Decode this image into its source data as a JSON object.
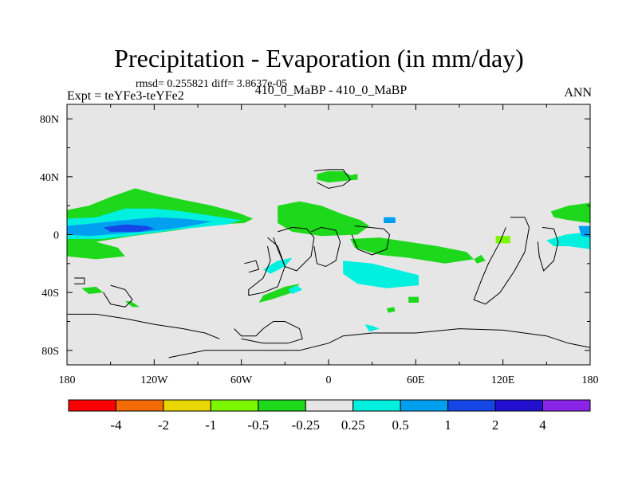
{
  "chart_data": {
    "type": "contour-map",
    "title": "Precipitation - Evaporation (in mm/day)",
    "stats": "rmsd= 0.255821  diff= 3.8637e-05",
    "expt_label": "Expt = teYFe3-teYFe2",
    "case_label": "410_0_MaBP - 410_0_MaBP",
    "season": "ANN",
    "x_range": [
      -180,
      180
    ],
    "y_range": [
      -90,
      90
    ],
    "x_ticks": [
      {
        "value": -180,
        "label": "180"
      },
      {
        "value": -120,
        "label": "120W"
      },
      {
        "value": -60,
        "label": "60W"
      },
      {
        "value": 0,
        "label": "0"
      },
      {
        "value": 60,
        "label": "60E"
      },
      {
        "value": 120,
        "label": "120E"
      },
      {
        "value": 180,
        "label": "180"
      }
    ],
    "y_ticks": [
      {
        "value": 80,
        "label": "80N"
      },
      {
        "value": 40,
        "label": "40N"
      },
      {
        "value": 0,
        "label": "0"
      },
      {
        "value": -40,
        "label": "40S"
      },
      {
        "value": -80,
        "label": "80S"
      }
    ],
    "colorbar": {
      "colors": [
        "#ff0000",
        "#f46a04",
        "#e8d700",
        "#7cf700",
        "#1ed81c",
        "#e6e6e6",
        "#00f0e0",
        "#009ff0",
        "#1546e8",
        "#2210d0",
        "#8a24e8"
      ],
      "levels": [
        "-4",
        "-2",
        "-1",
        "-0.5",
        "-0.25",
        "0.25",
        "0.5",
        "1",
        "2",
        "4"
      ]
    },
    "colors": {
      "background": "#e6e6e6",
      "green": "#1ed81c",
      "cyan": "#00f0e0",
      "lightblue": "#009ff0",
      "blue": "#1546e8",
      "lime": "#7cf700"
    },
    "regions": [
      {
        "level": "green",
        "points": [
          [
            -180,
            17
          ],
          [
            -165,
            20
          ],
          [
            -150,
            26
          ],
          [
            -133,
            32
          ],
          [
            -118,
            28
          ],
          [
            -100,
            24
          ],
          [
            -80,
            20
          ],
          [
            -62,
            15
          ],
          [
            -52,
            11
          ],
          [
            -58,
            8
          ],
          [
            -80,
            7
          ],
          [
            -105,
            3
          ],
          [
            -135,
            -1
          ],
          [
            -160,
            -5
          ],
          [
            -180,
            -5
          ]
        ]
      },
      {
        "level": "cyan",
        "points": [
          [
            -180,
            11
          ],
          [
            -160,
            12
          ],
          [
            -140,
            18
          ],
          [
            -120,
            18
          ],
          [
            -100,
            16
          ],
          [
            -80,
            13
          ],
          [
            -60,
            10
          ],
          [
            -70,
            7
          ],
          [
            -100,
            4
          ],
          [
            -130,
            0
          ],
          [
            -155,
            -3
          ],
          [
            -180,
            -3
          ]
        ]
      },
      {
        "level": "lightblue",
        "points": [
          [
            -180,
            6
          ],
          [
            -160,
            8
          ],
          [
            -140,
            10
          ],
          [
            -118,
            12
          ],
          [
            -100,
            11
          ],
          [
            -80,
            9
          ],
          [
            -95,
            6
          ],
          [
            -115,
            3
          ],
          [
            -140,
            1
          ],
          [
            -165,
            -1
          ],
          [
            -180,
            0
          ]
        ]
      },
      {
        "level": "blue",
        "points": [
          [
            -155,
            5
          ],
          [
            -140,
            7
          ],
          [
            -125,
            6
          ],
          [
            -120,
            4
          ],
          [
            -130,
            2
          ],
          [
            -150,
            2
          ]
        ]
      },
      {
        "level": "green",
        "points": [
          [
            -180,
            -4
          ],
          [
            -160,
            -5
          ],
          [
            -145,
            -9
          ],
          [
            -140,
            -15
          ],
          [
            -160,
            -17
          ],
          [
            -180,
            -15
          ]
        ]
      },
      {
        "level": "green",
        "points": [
          [
            -35,
            20
          ],
          [
            -20,
            23
          ],
          [
            -5,
            20
          ],
          [
            10,
            14
          ],
          [
            22,
            10
          ],
          [
            28,
            6
          ],
          [
            20,
            0
          ],
          [
            -5,
            -1
          ],
          [
            -25,
            2
          ],
          [
            -35,
            8
          ]
        ]
      },
      {
        "level": "green",
        "points": [
          [
            15,
            -3
          ],
          [
            35,
            -2
          ],
          [
            55,
            -5
          ],
          [
            75,
            -8
          ],
          [
            95,
            -12
          ],
          [
            100,
            -17
          ],
          [
            80,
            -20
          ],
          [
            55,
            -16
          ],
          [
            35,
            -14
          ],
          [
            18,
            -9
          ]
        ]
      },
      {
        "level": "cyan",
        "points": [
          [
            10,
            -18
          ],
          [
            30,
            -20
          ],
          [
            50,
            -25
          ],
          [
            62,
            -28
          ],
          [
            62,
            -35
          ],
          [
            40,
            -37
          ],
          [
            20,
            -34
          ],
          [
            10,
            -27
          ]
        ]
      },
      {
        "level": "green",
        "points": [
          [
            -8,
            42
          ],
          [
            0,
            44
          ],
          [
            10,
            44
          ],
          [
            15,
            41
          ],
          [
            20,
            42
          ],
          [
            20,
            38
          ],
          [
            10,
            37
          ],
          [
            0,
            36
          ],
          [
            -8,
            38
          ]
        ]
      },
      {
        "level": "lightblue",
        "points": [
          [
            38,
            12
          ],
          [
            46,
            12
          ],
          [
            46,
            8
          ],
          [
            38,
            8
          ]
        ]
      },
      {
        "level": "cyan",
        "points": [
          [
            150,
            -4
          ],
          [
            163,
            0
          ],
          [
            180,
            2
          ],
          [
            180,
            -10
          ],
          [
            165,
            -8
          ],
          [
            155,
            -8
          ]
        ]
      },
      {
        "level": "green",
        "points": [
          [
            153,
            16
          ],
          [
            165,
            20
          ],
          [
            180,
            22
          ],
          [
            180,
            8
          ],
          [
            165,
            10
          ],
          [
            155,
            12
          ]
        ]
      },
      {
        "level": "lightblue",
        "points": [
          [
            172,
            6
          ],
          [
            180,
            6
          ],
          [
            180,
            -2
          ],
          [
            174,
            -1
          ]
        ]
      },
      {
        "level": "green",
        "points": [
          [
            -45,
            -42
          ],
          [
            -30,
            -36
          ],
          [
            -20,
            -34
          ],
          [
            -25,
            -40
          ],
          [
            -40,
            -45
          ],
          [
            -48,
            -47
          ]
        ]
      },
      {
        "level": "cyan",
        "points": [
          [
            -28,
            -38
          ],
          [
            -22,
            -35
          ],
          [
            -18,
            -38
          ],
          [
            -25,
            -41
          ]
        ]
      },
      {
        "level": "cyan",
        "points": [
          [
            -45,
            -24
          ],
          [
            -35,
            -18
          ],
          [
            -25,
            -16
          ],
          [
            -30,
            -22
          ],
          [
            -40,
            -27
          ]
        ]
      },
      {
        "level": "green",
        "points": [
          [
            -140,
            -46
          ],
          [
            -135,
            -50
          ],
          [
            -130,
            -50
          ],
          [
            -136,
            -46
          ]
        ]
      },
      {
        "level": "lime",
        "points": [
          [
            115,
            -1
          ],
          [
            125,
            -1
          ],
          [
            125,
            -6
          ],
          [
            115,
            -6
          ]
        ]
      },
      {
        "level": "green",
        "points": [
          [
            100,
            -17
          ],
          [
            105,
            -14
          ],
          [
            108,
            -18
          ],
          [
            102,
            -20
          ]
        ]
      },
      {
        "level": "cyan",
        "points": [
          [
            25,
            -62
          ],
          [
            30,
            -63
          ],
          [
            35,
            -65
          ],
          [
            28,
            -67
          ]
        ]
      },
      {
        "level": "green",
        "points": [
          [
            40,
            -51
          ],
          [
            45,
            -50
          ],
          [
            46,
            -53
          ],
          [
            41,
            -54
          ]
        ]
      },
      {
        "level": "green",
        "points": [
          [
            55,
            -43
          ],
          [
            62,
            -43
          ],
          [
            62,
            -47
          ],
          [
            55,
            -47
          ]
        ]
      },
      {
        "level": "green",
        "points": [
          [
            -170,
            -37
          ],
          [
            -160,
            -36
          ],
          [
            -155,
            -40
          ],
          [
            -165,
            -41
          ]
        ]
      }
    ],
    "coast_paths": [
      [
        [
          -110,
          -85
        ],
        [
          -85,
          -80
        ],
        [
          -60,
          -80
        ],
        [
          -20,
          -80
        ],
        [
          0,
          -75
        ],
        [
          10,
          -70
        ],
        [
          30,
          -68
        ],
        [
          60,
          -68
        ],
        [
          90,
          -65
        ],
        [
          120,
          -66
        ],
        [
          150,
          -70
        ],
        [
          165,
          -75
        ],
        [
          180,
          -78
        ]
      ],
      [
        [
          -180,
          -55
        ],
        [
          -160,
          -55
        ],
        [
          -140,
          -58
        ],
        [
          -120,
          -62
        ],
        [
          -100,
          -65
        ],
        [
          -85,
          -68
        ],
        [
          -75,
          -72
        ]
      ],
      [
        [
          -65,
          -65
        ],
        [
          -60,
          -70
        ],
        [
          -50,
          -70
        ],
        [
          -45,
          -65
        ],
        [
          -38,
          -60
        ],
        [
          -30,
          -60
        ],
        [
          -20,
          -65
        ],
        [
          -18,
          -72
        ],
        [
          -28,
          -75
        ],
        [
          -45,
          -75
        ],
        [
          -60,
          -72
        ]
      ],
      [
        [
          -42,
          -2
        ],
        [
          -35,
          -8
        ],
        [
          -30,
          -22
        ],
        [
          -35,
          -36
        ],
        [
          -45,
          -40
        ],
        [
          -55,
          -42
        ],
        [
          -55,
          -38
        ],
        [
          -45,
          -30
        ],
        [
          -40,
          -18
        ],
        [
          -42,
          -8
        ]
      ],
      [
        [
          -35,
          2
        ],
        [
          -25,
          5
        ],
        [
          -15,
          4
        ],
        [
          -10,
          -2
        ],
        [
          -12,
          -15
        ],
        [
          -22,
          -25
        ],
        [
          -30,
          -22
        ],
        [
          -35,
          -10
        ],
        [
          -38,
          -2
        ]
      ],
      [
        [
          -12,
          2
        ],
        [
          -5,
          5
        ],
        [
          5,
          3
        ],
        [
          8,
          -5
        ],
        [
          5,
          -18
        ],
        [
          -2,
          -22
        ],
        [
          -8,
          -20
        ],
        [
          -10,
          -8
        ]
      ],
      [
        [
          18,
          6
        ],
        [
          28,
          5
        ],
        [
          38,
          4
        ],
        [
          42,
          0
        ],
        [
          40,
          -10
        ],
        [
          30,
          -14
        ],
        [
          20,
          -10
        ],
        [
          16,
          0
        ]
      ],
      [
        [
          -10,
          44
        ],
        [
          0,
          45
        ],
        [
          10,
          45
        ],
        [
          15,
          38
        ],
        [
          10,
          34
        ],
        [
          0,
          32
        ],
        [
          -8,
          36
        ]
      ],
      [
        [
          125,
          12
        ],
        [
          135,
          12
        ],
        [
          138,
          5
        ],
        [
          135,
          -12
        ],
        [
          128,
          -25
        ],
        [
          118,
          -40
        ],
        [
          108,
          -48
        ],
        [
          100,
          -45
        ],
        [
          105,
          -32
        ],
        [
          110,
          -20
        ],
        [
          118,
          -5
        ],
        [
          122,
          5
        ]
      ],
      [
        [
          147,
          5
        ],
        [
          155,
          4
        ],
        [
          158,
          -5
        ],
        [
          155,
          -18
        ],
        [
          148,
          -25
        ],
        [
          145,
          -15
        ],
        [
          144,
          -5
        ]
      ],
      [
        [
          -150,
          -35
        ],
        [
          -140,
          -38
        ],
        [
          -135,
          -45
        ],
        [
          -140,
          -50
        ],
        [
          -150,
          -48
        ],
        [
          -155,
          -40
        ]
      ],
      [
        [
          -175,
          -30
        ],
        [
          -168,
          -30
        ],
        [
          -168,
          -34
        ],
        [
          -175,
          -34
        ]
      ],
      [
        [
          -58,
          -20
        ],
        [
          -50,
          -18
        ],
        [
          -48,
          -24
        ],
        [
          -55,
          -26
        ]
      ]
    ]
  }
}
